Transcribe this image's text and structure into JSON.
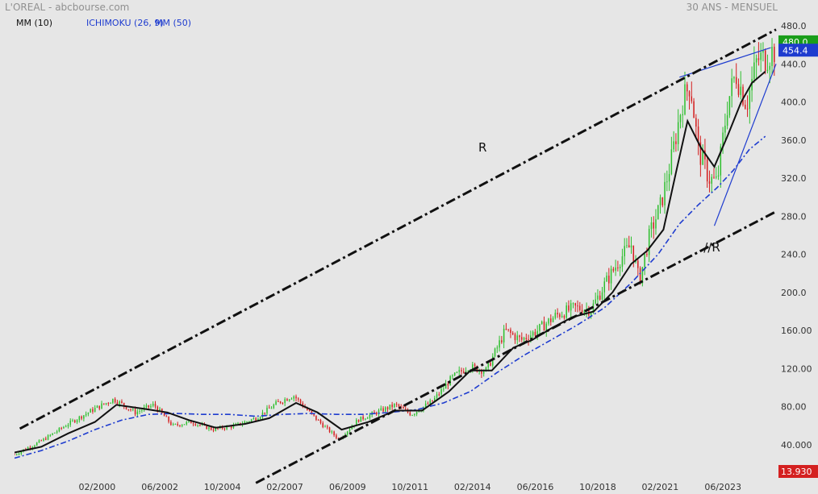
{
  "header": {
    "title": "L'OREAL - abcbourse.com",
    "period": "30 ANS - MENSUEL"
  },
  "legend": {
    "items": [
      {
        "label": "MM (10)",
        "color": "#111111"
      },
      {
        "label": "ICHIMOKU (26, 9)",
        "color": "#1e3ccf"
      },
      {
        "label": "MM (50)",
        "color": "#1e3ccf"
      }
    ]
  },
  "chart_data": {
    "type": "candlestick",
    "xlabel": "",
    "ylabel": "",
    "x_tick_labels": [
      "02/2000",
      "06/2002",
      "10/2004",
      "02/2007",
      "06/2009",
      "10/2011",
      "02/2014",
      "06/2016",
      "10/2018",
      "02/2021",
      "06/2023"
    ],
    "x_ticks": [
      2000.08,
      2002.42,
      2004.75,
      2007.08,
      2009.42,
      2011.75,
      2014.08,
      2016.42,
      2018.75,
      2021.08,
      2023.42
    ],
    "xlim": [
      1997.0,
      2025.4
    ],
    "y_tick_labels": [
      "480.0",
      "440.0",
      "400.0",
      "360.0",
      "320.0",
      "280.0",
      "240.0",
      "200.0",
      "160.00",
      "120.00",
      "80.00",
      "40.000"
    ],
    "y_ticks": [
      480,
      440,
      400,
      360,
      320,
      280,
      240,
      200,
      160,
      120,
      80,
      40
    ],
    "ylim": [
      13.93,
      500
    ],
    "last_price": "454.4",
    "last_price_color": "#1e3ccf",
    "top_label": "480.0",
    "top_label_color": "#1a9e1a",
    "bottom_label": "13.930",
    "bottom_label_color": "#d42020",
    "colors": {
      "up": "#2fbf2f",
      "down": "#d42020",
      "ma10": "#111111",
      "ma50": "#1e3ccf",
      "channel": "#111111",
      "wedge": "#1e3ccf"
    },
    "price_path": [
      [
        1997.0,
        30
      ],
      [
        1998.0,
        44
      ],
      [
        1999.0,
        62
      ],
      [
        2000.0,
        78
      ],
      [
        2000.7,
        88
      ],
      [
        2001.5,
        74
      ],
      [
        2002.2,
        82
      ],
      [
        2002.9,
        60
      ],
      [
        2003.6,
        64
      ],
      [
        2004.4,
        56
      ],
      [
        2005.2,
        60
      ],
      [
        2006.0,
        68
      ],
      [
        2006.8,
        84
      ],
      [
        2007.4,
        92
      ],
      [
        2008.0,
        74
      ],
      [
        2008.6,
        58
      ],
      [
        2009.1,
        46
      ],
      [
        2009.8,
        66
      ],
      [
        2010.5,
        74
      ],
      [
        2011.2,
        82
      ],
      [
        2011.8,
        72
      ],
      [
        2012.6,
        86
      ],
      [
        2013.3,
        110
      ],
      [
        2013.9,
        122
      ],
      [
        2014.6,
        118
      ],
      [
        2015.3,
        160
      ],
      [
        2015.9,
        150
      ],
      [
        2016.5,
        160
      ],
      [
        2017.2,
        176
      ],
      [
        2017.9,
        184
      ],
      [
        2018.5,
        182
      ],
      [
        2019.0,
        208
      ],
      [
        2019.6,
        236
      ],
      [
        2020.0,
        250
      ],
      [
        2020.3,
        212
      ],
      [
        2020.7,
        262
      ],
      [
        2021.1,
        292
      ],
      [
        2021.5,
        340
      ],
      [
        2021.9,
        400
      ],
      [
        2022.2,
        420
      ],
      [
        2022.5,
        350
      ],
      [
        2022.9,
        320
      ],
      [
        2023.2,
        315
      ],
      [
        2023.6,
        400
      ],
      [
        2023.9,
        430
      ],
      [
        2024.3,
        398
      ],
      [
        2024.7,
        445
      ],
      [
        2025.0,
        446
      ],
      [
        2025.3,
        454
      ]
    ],
    "ma10": [
      [
        1997.0,
        32
      ],
      [
        1998.0,
        38
      ],
      [
        1999.0,
        52
      ],
      [
        2000.0,
        64
      ],
      [
        2000.8,
        82
      ],
      [
        2001.8,
        78
      ],
      [
        2002.7,
        74
      ],
      [
        2003.5,
        66
      ],
      [
        2004.5,
        58
      ],
      [
        2005.6,
        62
      ],
      [
        2006.5,
        68
      ],
      [
        2007.5,
        84
      ],
      [
        2008.3,
        74
      ],
      [
        2009.2,
        56
      ],
      [
        2010.2,
        64
      ],
      [
        2011.2,
        76
      ],
      [
        2012.2,
        76
      ],
      [
        2013.2,
        96
      ],
      [
        2014.0,
        118
      ],
      [
        2014.8,
        118
      ],
      [
        2015.6,
        142
      ],
      [
        2016.3,
        150
      ],
      [
        2017.0,
        162
      ],
      [
        2017.8,
        174
      ],
      [
        2018.6,
        180
      ],
      [
        2019.3,
        200
      ],
      [
        2020.0,
        230
      ],
      [
        2020.6,
        244
      ],
      [
        2021.2,
        266
      ],
      [
        2021.7,
        330
      ],
      [
        2022.1,
        380
      ],
      [
        2022.6,
        352
      ],
      [
        2023.1,
        332
      ],
      [
        2023.6,
        365
      ],
      [
        2024.1,
        400
      ],
      [
        2024.5,
        420
      ],
      [
        2025.0,
        432
      ]
    ],
    "ma50": [
      [
        1997.0,
        26
      ],
      [
        1998.0,
        34
      ],
      [
        1999.0,
        44
      ],
      [
        2000.0,
        56
      ],
      [
        2001.0,
        66
      ],
      [
        2002.0,
        72
      ],
      [
        2003.0,
        73
      ],
      [
        2004.0,
        72
      ],
      [
        2005.0,
        72
      ],
      [
        2006.0,
        70
      ],
      [
        2007.0,
        72
      ],
      [
        2008.0,
        73
      ],
      [
        2009.0,
        72
      ],
      [
        2010.0,
        72
      ],
      [
        2011.0,
        74
      ],
      [
        2012.0,
        77
      ],
      [
        2013.0,
        84
      ],
      [
        2014.0,
        96
      ],
      [
        2015.0,
        116
      ],
      [
        2016.0,
        134
      ],
      [
        2017.0,
        150
      ],
      [
        2018.0,
        166
      ],
      [
        2019.0,
        184
      ],
      [
        2020.0,
        210
      ],
      [
        2021.0,
        240
      ],
      [
        2021.8,
        272
      ],
      [
        2022.5,
        292
      ],
      [
        2023.2,
        310
      ],
      [
        2023.8,
        328
      ],
      [
        2024.4,
        350
      ],
      [
        2025.0,
        364
      ]
    ],
    "channel_upper": [
      [
        1997.2,
        57
      ],
      [
        2025.4,
        476
      ]
    ],
    "channel_lower": [
      [
        2006.0,
        0
      ],
      [
        2025.4,
        285
      ]
    ],
    "wedge_upper": [
      [
        2021.8,
        426
      ],
      [
        2025.2,
        457
      ]
    ],
    "wedge_lower": [
      [
        2023.1,
        270
      ],
      [
        2025.4,
        440
      ]
    ],
    "annotations": [
      {
        "text": "R",
        "x": 2014.3,
        "y": 348
      },
      {
        "text": "//R",
        "x": 2022.7,
        "y": 243
      }
    ]
  }
}
